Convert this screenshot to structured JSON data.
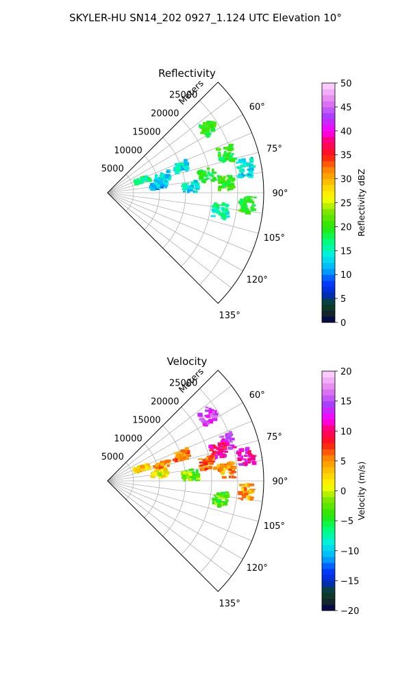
{
  "figure": {
    "title": "SKYLER-HU  SN14_202  0927_1.124 UTC Elevation 10°"
  },
  "chart_data": [
    {
      "type": "heatmap",
      "projection": "polar-sector",
      "title": "Reflectivity",
      "range_label": "Meters",
      "range_ticks": [
        "5000",
        "10000",
        "15000",
        "20000",
        "25000"
      ],
      "range_tick_values": [
        5000,
        10000,
        15000,
        20000,
        25000
      ],
      "rlim": [
        0,
        30000
      ],
      "azimuth_ticks": [
        "60°",
        "75°",
        "90°",
        "105°",
        "120°",
        "135°"
      ],
      "azimuth_tick_values": [
        60,
        75,
        90,
        105,
        120,
        135
      ],
      "azimuth_range": [
        45,
        135
      ],
      "grid": true,
      "colorbar": {
        "label": "Reflectivity dBZ",
        "range": [
          0,
          50
        ],
        "ticks": [
          "0",
          "5",
          "10",
          "15",
          "20",
          "25",
          "30",
          "35",
          "40",
          "45",
          "50"
        ],
        "tick_values": [
          0,
          5,
          10,
          15,
          20,
          25,
          30,
          35,
          40,
          45,
          50
        ]
      },
      "echoes": [
        {
          "azimuth": 57,
          "range": 23000,
          "value": 20
        },
        {
          "azimuth": 72,
          "range": 24000,
          "value": 19
        },
        {
          "azimuth": 71,
          "range": 15000,
          "value": 14
        },
        {
          "azimuth": 74,
          "range": 11000,
          "value": 13
        },
        {
          "azimuth": 70,
          "range": 7000,
          "value": 17
        },
        {
          "azimuth": 82,
          "range": 10000,
          "value": 12
        },
        {
          "azimuth": 80,
          "range": 19500,
          "value": 18
        },
        {
          "azimuth": 85,
          "range": 23000,
          "value": 20
        },
        {
          "azimuth": 86,
          "range": 16000,
          "value": 14
        },
        {
          "azimuth": 95,
          "range": 27000,
          "value": 19
        },
        {
          "azimuth": 99,
          "range": 22000,
          "value": 16
        },
        {
          "azimuth": 80,
          "range": 27000,
          "value": 13
        }
      ]
    },
    {
      "type": "heatmap",
      "projection": "polar-sector",
      "title": "Velocity",
      "range_label": "Meters",
      "range_ticks": [
        "5000",
        "10000",
        "15000",
        "20000",
        "25000"
      ],
      "range_tick_values": [
        5000,
        10000,
        15000,
        20000,
        25000
      ],
      "rlim": [
        0,
        30000
      ],
      "azimuth_ticks": [
        "60°",
        "75°",
        "90°",
        "105°",
        "120°",
        "135°"
      ],
      "azimuth_tick_values": [
        60,
        75,
        90,
        105,
        120,
        135
      ],
      "azimuth_range": [
        45,
        135
      ],
      "grid": true,
      "colorbar": {
        "label": "Velocity (m/s)",
        "range": [
          -20,
          20
        ],
        "ticks": [
          "−20",
          "−15",
          "−10",
          "−5",
          "0",
          "5",
          "10",
          "15",
          "20"
        ],
        "tick_values": [
          -20,
          -15,
          -10,
          -5,
          0,
          5,
          10,
          15,
          20
        ]
      },
      "echoes": [
        {
          "azimuth": 57,
          "range": 23000,
          "value": 14
        },
        {
          "azimuth": 72,
          "range": 24000,
          "value": 13
        },
        {
          "azimuth": 75,
          "range": 22000,
          "value": 10
        },
        {
          "azimuth": 71,
          "range": 15000,
          "value": 6
        },
        {
          "azimuth": 74,
          "range": 11000,
          "value": 5
        },
        {
          "azimuth": 70,
          "range": 7000,
          "value": 2
        },
        {
          "azimuth": 82,
          "range": 10000,
          "value": 1
        },
        {
          "azimuth": 80,
          "range": 19500,
          "value": 6
        },
        {
          "azimuth": 85,
          "range": 23000,
          "value": 5
        },
        {
          "azimuth": 86,
          "range": 16000,
          "value": -2
        },
        {
          "azimuth": 95,
          "range": 27000,
          "value": 4
        },
        {
          "azimuth": 99,
          "range": 22000,
          "value": -3
        },
        {
          "azimuth": 80,
          "range": 27000,
          "value": 12
        }
      ]
    }
  ]
}
